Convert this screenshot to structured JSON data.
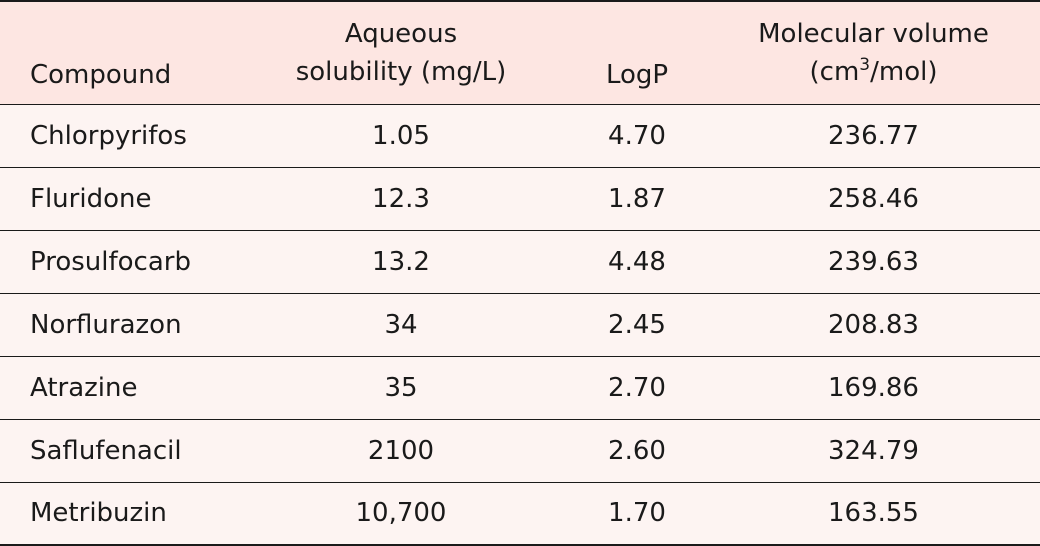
{
  "table": {
    "headers": {
      "compound": "Compound",
      "solubility_line1": "Aqueous",
      "solubility_line2": "solubility (mg/L)",
      "logp": "LogP",
      "volume_line1": "Molecular volume",
      "volume_unit_prefix": "(cm",
      "volume_unit_sup": "3",
      "volume_unit_suffix": "/mol)"
    },
    "rows": [
      {
        "compound": "Chlorpyrifos",
        "solubility": "1.05",
        "logp": "4.70",
        "volume": "236.77"
      },
      {
        "compound": "Fluridone",
        "solubility": "12.3",
        "logp": "1.87",
        "volume": "258.46"
      },
      {
        "compound": "Prosulfocarb",
        "solubility": "13.2",
        "logp": "4.48",
        "volume": "239.63"
      },
      {
        "compound": "Norflurazon",
        "solubility": "34",
        "logp": "2.45",
        "volume": "208.83"
      },
      {
        "compound": "Atrazine",
        "solubility": "35",
        "logp": "2.70",
        "volume": "169.86"
      },
      {
        "compound": "Saflufenacil",
        "solubility": "2100",
        "logp": "2.60",
        "volume": "324.79"
      },
      {
        "compound": "Metribuzin",
        "solubility": "10,700",
        "logp": "1.70",
        "volume": "163.55"
      }
    ]
  },
  "colors": {
    "header_bg": "#fde6e2",
    "row_bg": "#fdf4f2",
    "rule": "#1a1a1a"
  }
}
